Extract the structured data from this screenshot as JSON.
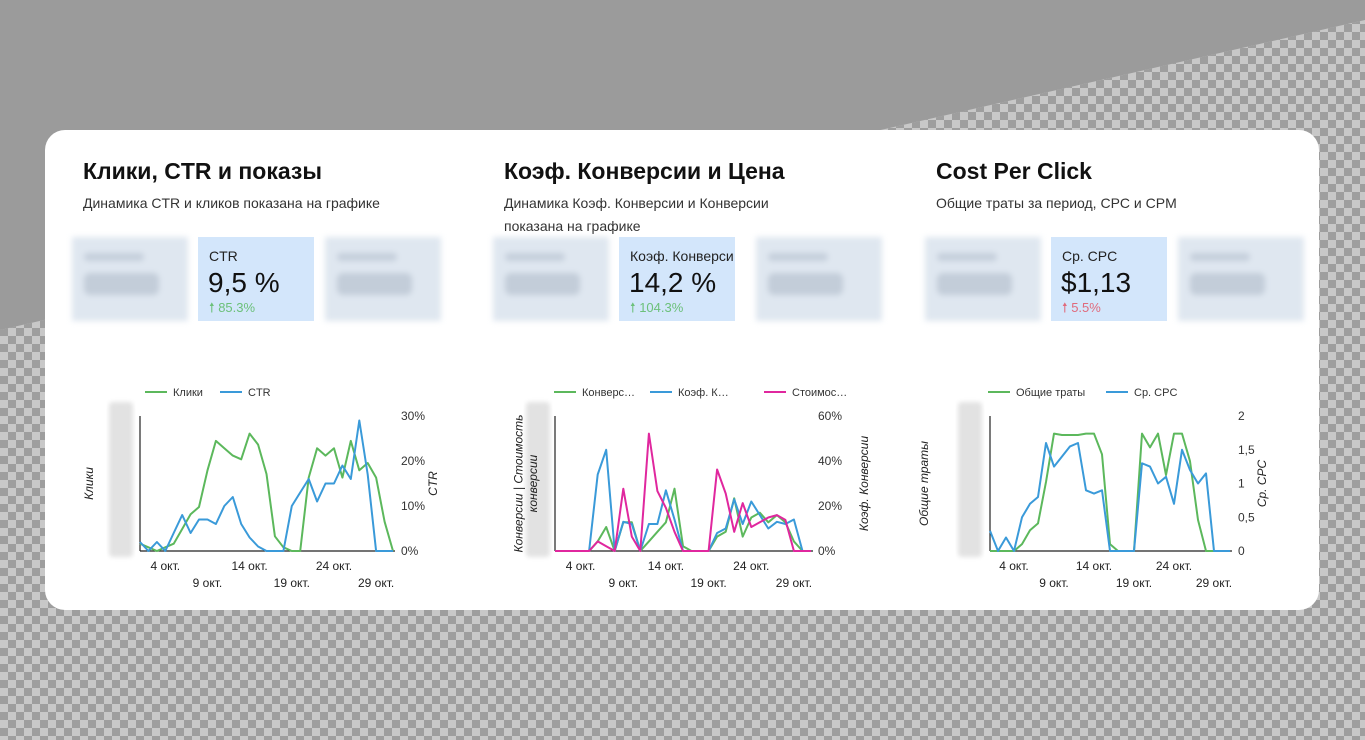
{
  "panels": [
    {
      "title": "Клики, CTR и показы",
      "subtitle": "Динамика CTR и кликов показана на графике",
      "kpi": {
        "label": "CTR",
        "value": "9,5 %",
        "delta": "85.3%",
        "trend": "up",
        "arrow": "arrow-up-icon"
      }
    },
    {
      "title": "Коэф. Конверсии и Цена",
      "subtitle": "Динамика Коэф. Конверсии и Конверсии показана на графике",
      "kpi": {
        "label": "Коэф. Конверсии",
        "value": "14,2 %",
        "delta": "104.3%",
        "trend": "up",
        "arrow": "arrow-up-icon"
      }
    },
    {
      "title": "Cost Per Click",
      "subtitle": "Общие траты за период, CPC и CPM",
      "kpi": {
        "label": "Ср. CPC",
        "value": "$1,13",
        "delta": "5.5%",
        "trend": "up-bad",
        "arrow": "arrow-up-icon"
      }
    }
  ],
  "colors": {
    "green": "#5cb85c",
    "blue": "#3a9ad9",
    "magenta": "#e0279e",
    "up": "#6cc07a",
    "down": "#e06a7c"
  },
  "chart_data": [
    {
      "type": "line",
      "x": [
        "1 окт.",
        "2 окт.",
        "3 окт.",
        "4 окт.",
        "5 окт.",
        "6 окт.",
        "7 окт.",
        "8 окт.",
        "9 окт.",
        "10 окт.",
        "11 окт.",
        "12 окт.",
        "13 окт.",
        "14 окт.",
        "15 окт.",
        "16 окт.",
        "17 окт.",
        "18 окт.",
        "19 окт.",
        "20 окт.",
        "21 окт.",
        "22 окт.",
        "23 окт.",
        "24 окт.",
        "25 окт.",
        "26 окт.",
        "27 окт.",
        "28 окт.",
        "29 окт.",
        "30 окт.",
        "31 окт."
      ],
      "xticks": [
        "4 окт.",
        "9 окт.",
        "14 окт.",
        "19 окт.",
        "24 окт.",
        "29 окт."
      ],
      "series": [
        {
          "name": "Клики",
          "axis": "left",
          "color": "#5cb85c",
          "values": [
            2,
            1,
            0,
            1,
            2,
            6,
            10,
            12,
            22,
            30,
            28,
            26,
            25,
            32,
            29,
            21,
            4,
            1,
            0,
            0,
            20,
            28,
            26,
            28,
            20,
            30,
            22,
            24,
            20,
            8,
            0
          ]
        },
        {
          "name": "CTR",
          "axis": "right",
          "color": "#3a9ad9",
          "values": [
            2,
            0,
            2,
            0,
            4,
            8,
            4,
            7,
            7,
            6,
            10,
            12,
            6,
            3,
            1,
            0,
            0,
            0,
            10,
            13,
            16,
            11,
            15,
            15,
            19,
            16,
            29,
            17,
            0,
            0,
            0
          ]
        }
      ],
      "yleft": {
        "label": "Клики",
        "ticks": []
      },
      "yright": {
        "label": "CTR",
        "ticks": [
          "0%",
          "10%",
          "20%",
          "30%"
        ],
        "range": [
          0,
          30
        ]
      }
    },
    {
      "type": "line",
      "x": [
        "1 окт.",
        "2 окт.",
        "3 окт.",
        "4 окт.",
        "5 окт.",
        "6 окт.",
        "7 окт.",
        "8 окт.",
        "9 окт.",
        "10 окт.",
        "11 окт.",
        "12 окт.",
        "13 окт.",
        "14 окт.",
        "15 окт.",
        "16 окт.",
        "17 окт.",
        "18 окт.",
        "19 окт.",
        "20 окт.",
        "21 окт.",
        "22 окт.",
        "23 окт.",
        "24 окт.",
        "25 окт.",
        "26 окт.",
        "27 окт.",
        "28 окт.",
        "29 окт.",
        "30 окт.",
        "31 окт."
      ],
      "xticks": [
        "4 окт.",
        "9 окт.",
        "14 окт.",
        "19 окт.",
        "24 окт.",
        "29 окт."
      ],
      "series": [
        {
          "name": "Конверсии",
          "axis": "left",
          "color": "#5cb85c",
          "values": [
            0,
            0,
            0,
            0,
            0,
            4,
            10,
            0,
            12,
            12,
            0,
            4,
            8,
            12,
            26,
            2,
            0,
            0,
            0,
            6,
            8,
            22,
            6,
            14,
            16,
            12,
            15,
            12,
            4,
            0,
            0
          ]
        },
        {
          "name": "Коэф. Конверсии",
          "axis": "right",
          "color": "#3a9ad9",
          "values": [
            0,
            0,
            0,
            0,
            0,
            34,
            45,
            0,
            13,
            12,
            0,
            12,
            12,
            27,
            14,
            0,
            0,
            0,
            0,
            8,
            10,
            23,
            12,
            22,
            16,
            10,
            13,
            12,
            14,
            0,
            0
          ]
        },
        {
          "name": "Стоимость конверсии",
          "axis": "left",
          "color": "#e0279e",
          "values": [
            0,
            0,
            0,
            0,
            0,
            4,
            2,
            0,
            26,
            6,
            0,
            49,
            25,
            18,
            8,
            0,
            0,
            0,
            0,
            34,
            24,
            8,
            20,
            10,
            12,
            14,
            15,
            13,
            0,
            0,
            0
          ]
        }
      ],
      "yleft": {
        "label": "Конверсии | Стоимость конверсии",
        "ticks": []
      },
      "yright": {
        "label": "Коэф. Конверсии",
        "ticks": [
          "0%",
          "20%",
          "40%",
          "60%"
        ],
        "range": [
          0,
          60
        ]
      }
    },
    {
      "type": "line",
      "x": [
        "1 окт.",
        "2 окт.",
        "3 окт.",
        "4 окт.",
        "5 окт.",
        "6 окт.",
        "7 окт.",
        "8 окт.",
        "9 окт.",
        "10 окт.",
        "11 окт.",
        "12 окт.",
        "13 окт.",
        "14 окт.",
        "15 окт.",
        "16 окт.",
        "17 окт.",
        "18 окт.",
        "19 окт.",
        "20 окт.",
        "21 окт.",
        "22 окт.",
        "23 окт.",
        "24 окт.",
        "25 окт.",
        "26 окт.",
        "27 окт.",
        "28 окт.",
        "29 окт.",
        "30 окт.",
        "31 окт."
      ],
      "xticks": [
        "4 окт.",
        "9 окт.",
        "14 окт.",
        "19 окт.",
        "24 окт.",
        "29 окт."
      ],
      "series": [
        {
          "name": "Общие траты",
          "axis": "left",
          "color": "#5cb85c",
          "values": [
            0,
            0,
            0,
            0,
            0.1,
            0.3,
            0.4,
            1.0,
            1.7,
            1.68,
            1.68,
            1.68,
            1.7,
            1.7,
            1.4,
            0.1,
            0,
            0,
            0,
            1.7,
            1.5,
            1.7,
            1.1,
            1.7,
            1.7,
            1.3,
            0.45,
            0,
            0,
            0,
            0
          ]
        },
        {
          "name": "Ср. CPC",
          "axis": "right",
          "color": "#3a9ad9",
          "values": [
            0.3,
            0,
            0.2,
            0,
            0.5,
            0.7,
            0.8,
            1.6,
            1.25,
            1.4,
            1.55,
            1.6,
            0.9,
            0.85,
            0.9,
            0,
            0,
            0,
            0,
            1.3,
            1.25,
            1.0,
            1.1,
            0.7,
            1.5,
            1.2,
            1.0,
            1.15,
            0,
            0,
            0
          ]
        }
      ],
      "yleft": {
        "label": "Общие траты",
        "ticks": []
      },
      "yright": {
        "label": "Ср. CPC",
        "ticks": [
          "0",
          "0,5",
          "1",
          "1,5",
          "2"
        ],
        "range": [
          0,
          2
        ]
      }
    }
  ]
}
